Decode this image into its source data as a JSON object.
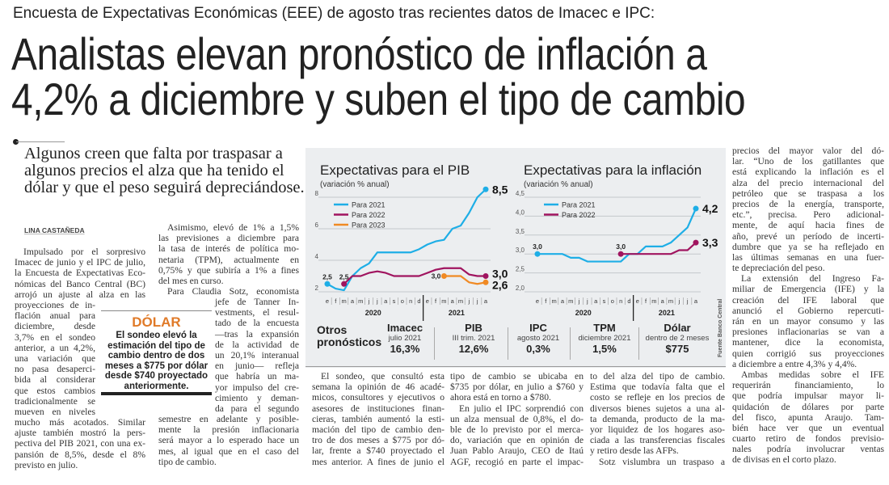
{
  "header": {
    "kicker": "Encuesta de Expectativas Económicas (EEE) de agosto tras recientes datos de Imacec e IPC:",
    "headline_lines": [
      "Analistas elevan pronóstico de inflación a",
      "4,2% a diciembre y suben el tipo de cambio"
    ]
  },
  "subhead": "Algunos creen que falta por traspasar a algunos precios el alza que ha tenido el dólar y que el peso seguirá depreciándose.",
  "byline": "LINA CASTAÑEDA",
  "article": {
    "col1a": {
      "paragraphs": [
        [
          "Impulsado por el sorpresivo",
          "Imacec de junio y el IPC de julio,",
          "la Encuesta de Expectativas Eco-",
          "nómicas del Banco Central (BC)",
          "arrojó un ajuste al alza en las"
        ]
      ]
    },
    "col1b": {
      "paragraphs": [
        [
          "proyecciones de in-",
          "flación anual para",
          "diciembre, desde",
          "3,7% en el sondeo",
          "anterior, a un 4,2%,",
          "una variación que",
          "no pasa desaperci-",
          "bida al considerar",
          "que estos cambios",
          "tradicionalmente se",
          "mueven en niveles"
        ]
      ]
    },
    "col1c": {
      "paragraphs": [
        [
          "mucho más acotados. Similar",
          "ajuste también mostró la pers-",
          "pectiva del PIB 2021, con una ex-",
          "pansión de 8,5%, desde el 8%",
          "previsto en julio."
        ]
      ]
    },
    "col2a": {
      "paragraphs": [
        [
          "Asimismo, elevó de 1% a 1,5%",
          "las previsiones a diciembre para",
          "la tasa de interés de política mo-",
          "netaria (TPM), actualmente en",
          "0,75% y que subiría a 1% a fines",
          "del mes en curso."
        ],
        [
          "Para Claudia Sotz, economista"
        ]
      ]
    },
    "col2b": {
      "paragraphs": [
        [
          "jefe de Tanner In-",
          "vestments, el resul-",
          "tado de la encuesta",
          "—tras la expansión",
          "de la actividad de",
          "un 20,1% interanual",
          "en junio— refleja",
          "que habría un ma-",
          "yor impulso del cre-",
          "cimiento y deman-",
          "da para el segundo"
        ]
      ]
    },
    "col2c": {
      "paragraphs": [
        [
          "semestre en adelante y posible-",
          "mente la presión inflacionaria",
          "será mayor a lo esperado hace un",
          "mes, al igual que en el caso del",
          "tipo de cambio."
        ]
      ]
    },
    "col3": {
      "paragraphs": [
        [
          "El sondeo, que consultó esta",
          "semana la opinión de 46 acadé-",
          "micos, consultores y ejecutivos o",
          "asesores de instituciones finan-",
          "cieras, también aumentó la esti-",
          "mación del tipo de cambio den-",
          "tro de dos meses a $775 por dó-",
          "lar, frente a $740 proyectado el",
          "mes anterior. A fines de junio el"
        ]
      ]
    },
    "col4": {
      "paragraphs": [
        [
          "tipo de cambio se ubicaba en",
          "$735 por dólar, en julio a $760 y",
          "ahora está en torno a $780."
        ],
        [
          "En julio el IPC sorprendió con",
          "un alza mensual de 0,8%, el do-",
          "ble de lo previsto por el merca-",
          "do, variación que en opinión de",
          "Juan Pablo Araujo, CEO de Itaú",
          "AGF, recogió en parte el impac-"
        ]
      ]
    },
    "col5": {
      "paragraphs": [
        [
          "to del alza del tipo de cambio.",
          "Estima que todavía falta que el",
          "costo se refleje en los precios de",
          "diversos bienes sujetos a una al-",
          "ta demanda, producto de la ma-",
          "yor liquidez de los hogares aso-",
          "ciada a las transferencias fiscales",
          "y retiro desde las AFPs."
        ],
        [
          "Sotz vislumbra un traspaso a"
        ]
      ]
    },
    "col6": {
      "paragraphs": [
        [
          "precios del mayor valor del dó-",
          "lar. “Uno de los gatillantes que",
          "está explicando la inflación es el",
          "alza del precio internacional del",
          "petróleo que se traspasa a los",
          "precios de la energía, transporte,",
          "etc.”, precisa. Pero adicional-",
          "mente, de aquí hacia fines de",
          "año, prevé un período de incerti-",
          "dumbre que ya se ha reflejado en",
          "las últimas semanas en una fuer-",
          "te depreciación del peso."
        ],
        [
          "La extensión del Ingreso Fa-",
          "miliar de Emergencia (IFE) y la",
          "creación del IFE laboral que",
          "anunció el Gobierno repercuti-",
          "rán en un mayor consumo y las",
          "presiones inflacionarias se van a",
          "mantener, dice la economista,",
          "quien corrigió sus proyecciones",
          "a diciembre a entre 4,3% y 4,4%."
        ],
        [
          "Ambas medidas sobre el IFE",
          "requerirán financiamiento, lo",
          "que podría impulsar mayor li-",
          "quidación de dólares por parte",
          "del fisco, apunta Araujo. Tam-",
          "bién hace ver que un eventual",
          "cuarto retiro de fondos previsio-",
          "nales podría involucrar ventas",
          "de divisas en el corto plazo."
        ]
      ]
    }
  },
  "sidebar_box": {
    "title": "DÓLAR",
    "text": "El sondeo elevó la estimación del tipo de cambio dentro de dos meses a $775 por dólar desde $740 proyectado anteriormente.",
    "accent_color": "#e07a28"
  },
  "chart_data": [
    {
      "type": "line",
      "title": "Expectativas para el PIB",
      "subtitle": "(variación % anual)",
      "x_months": [
        "e",
        "f",
        "m",
        "a",
        "m",
        "j",
        "j",
        "a",
        "s",
        "o",
        "n",
        "d",
        "e",
        "f",
        "m",
        "a",
        "m",
        "j",
        "j",
        "a"
      ],
      "x_years": [
        "2020",
        "2021"
      ],
      "yticks": [
        2,
        4,
        6,
        8
      ],
      "ylim": [
        2,
        8
      ],
      "grid": true,
      "legend": "top-left",
      "series": [
        {
          "name": "Para 2021",
          "color": "#1eaee6",
          "values": [
            2.5,
            2.2,
            2.1,
            3.0,
            3.5,
            3.8,
            4.5,
            4.5,
            4.5,
            4.5,
            4.5,
            4.7,
            5.0,
            5.2,
            5.3,
            6.0,
            6.2,
            7.0,
            8.0,
            8.5
          ],
          "start_label": "2,5",
          "end_label": "8,5"
        },
        {
          "name": "Para 2022",
          "color": "#a0145f",
          "values": [
            null,
            null,
            2.5,
            3.0,
            3.0,
            3.2,
            3.3,
            3.2,
            3.0,
            3.0,
            3.0,
            3.0,
            3.2,
            3.4,
            3.5,
            3.5,
            3.5,
            3.1,
            3.0,
            3.0
          ],
          "start_label": "2,5",
          "end_label": "3,0"
        },
        {
          "name": "Para 2023",
          "color": "#f08a24",
          "values": [
            null,
            null,
            null,
            null,
            null,
            null,
            null,
            null,
            null,
            null,
            null,
            null,
            null,
            null,
            3.0,
            3.0,
            3.0,
            2.6,
            2.5,
            2.6
          ],
          "start_label": "3,0",
          "end_label": "2,6"
        }
      ]
    },
    {
      "type": "line",
      "title": "Expectativas para la inflación",
      "subtitle": "(variación % anual)",
      "x_months": [
        "e",
        "f",
        "m",
        "a",
        "m",
        "j",
        "j",
        "a",
        "s",
        "o",
        "n",
        "d",
        "e",
        "f",
        "m",
        "a",
        "m",
        "j",
        "j",
        "a"
      ],
      "x_years": [
        "2020",
        "2021"
      ],
      "yticks": [
        2.0,
        2.5,
        3.0,
        3.5,
        4.0,
        4.5
      ],
      "ytick_labels": [
        "2,0",
        "2,5",
        "3,0",
        "3,5",
        "4,0",
        "4,5"
      ],
      "ylim": [
        2.0,
        4.5
      ],
      "grid": true,
      "legend": "top-left",
      "series": [
        {
          "name": "Para 2021",
          "color": "#1eaee6",
          "values": [
            3.0,
            3.0,
            3.0,
            3.0,
            2.9,
            2.9,
            2.8,
            2.8,
            2.8,
            2.8,
            2.8,
            3.0,
            3.0,
            3.2,
            3.2,
            3.2,
            3.3,
            3.5,
            3.7,
            4.2
          ],
          "start_label": "3,0",
          "end_label": "4,2"
        },
        {
          "name": "Para 2022",
          "color": "#a0145f",
          "values": [
            null,
            null,
            null,
            null,
            null,
            null,
            null,
            null,
            null,
            null,
            3.0,
            3.0,
            3.0,
            3.0,
            3.0,
            3.0,
            3.0,
            3.1,
            3.1,
            3.3
          ],
          "start_label": "3,0",
          "end_label": "3,3"
        }
      ]
    }
  ],
  "forecasts": {
    "title_lines": [
      "Otros",
      "pronósticos"
    ],
    "items": [
      {
        "label": "Imacec",
        "period": "julio 2021",
        "value": "16,3%"
      },
      {
        "label": "PIB",
        "period": "III trim. 2021",
        "value": "12,6%"
      },
      {
        "label": "IPC",
        "period": "agosto 2021",
        "value": "0,3%"
      },
      {
        "label": "TPM",
        "period": "diciembre 2021",
        "value": "1,5%"
      },
      {
        "label": "Dólar",
        "period": "dentro de 2 meses",
        "value": "$775"
      }
    ],
    "source": "Fuente Banco Central"
  }
}
